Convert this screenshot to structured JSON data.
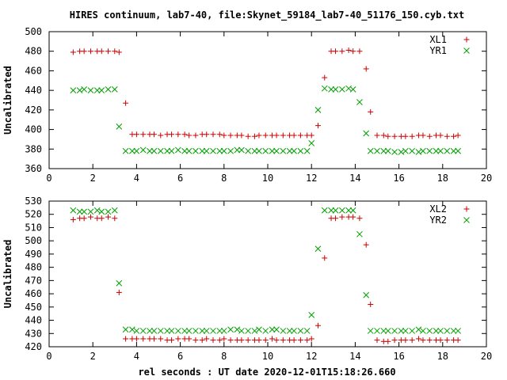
{
  "title": "HIRES continuum, lab7-40, file:Skynet_59184_lab7-40_51176_150.cyb.txt",
  "xlabel": "rel seconds : UT date 2020-12-01T15:18:26.660",
  "colors": {
    "series1": "#cc0000",
    "series2": "#00a000",
    "axis": "#000000"
  },
  "chart_data": [
    {
      "type": "scatter",
      "ylabel": "Uncalibrated",
      "xlim": [
        0,
        20
      ],
      "ylim": [
        360,
        500
      ],
      "xticks": [
        0,
        2,
        4,
        6,
        8,
        10,
        12,
        14,
        16,
        18,
        20
      ],
      "yticks": [
        360,
        380,
        400,
        420,
        440,
        460,
        480,
        500
      ],
      "grid": false,
      "legend": "top-right",
      "series": [
        {
          "name": "XL1",
          "marker": "plus",
          "x": [
            1.1,
            1.4,
            1.6,
            1.9,
            2.2,
            2.4,
            2.7,
            3.0,
            3.2,
            3.5,
            3.8,
            4.0,
            4.3,
            4.6,
            4.8,
            5.1,
            5.4,
            5.6,
            5.9,
            6.2,
            6.4,
            6.7,
            7.0,
            7.2,
            7.5,
            7.8,
            8.0,
            8.3,
            8.6,
            8.8,
            9.1,
            9.4,
            9.6,
            9.9,
            10.2,
            10.4,
            10.7,
            11.0,
            11.2,
            11.5,
            11.8,
            12.0,
            12.3,
            12.6,
            12.9,
            13.1,
            13.4,
            13.7,
            13.9,
            14.2,
            14.5,
            14.7,
            15.0,
            15.3,
            15.5,
            15.8,
            16.1,
            16.3,
            16.6,
            16.9,
            17.1,
            17.4,
            17.7,
            17.9,
            18.2,
            18.5,
            18.7
          ],
          "y": [
            479,
            480,
            480,
            480,
            480,
            480,
            480,
            480,
            479,
            427,
            395,
            395,
            395,
            395,
            395,
            394,
            395,
            395,
            395,
            395,
            394,
            394,
            395,
            395,
            395,
            395,
            394,
            394,
            394,
            394,
            393,
            393,
            394,
            394,
            394,
            394,
            394,
            394,
            394,
            394,
            394,
            394,
            404,
            453,
            480,
            480,
            480,
            481,
            480,
            480,
            462,
            418,
            394,
            394,
            393,
            393,
            393,
            393,
            393,
            394,
            394,
            393,
            394,
            394,
            393,
            393,
            394
          ]
        },
        {
          "name": "YR1",
          "marker": "cross",
          "x": [
            1.1,
            1.4,
            1.6,
            1.9,
            2.2,
            2.4,
            2.7,
            3.0,
            3.2,
            3.5,
            3.8,
            4.0,
            4.3,
            4.6,
            4.8,
            5.1,
            5.4,
            5.6,
            5.9,
            6.2,
            6.4,
            6.7,
            7.0,
            7.2,
            7.5,
            7.8,
            8.0,
            8.3,
            8.6,
            8.8,
            9.1,
            9.4,
            9.6,
            9.9,
            10.2,
            10.4,
            10.7,
            11.0,
            11.2,
            11.5,
            11.8,
            12.0,
            12.3,
            12.6,
            12.9,
            13.1,
            13.4,
            13.7,
            13.9,
            14.2,
            14.5,
            14.7,
            15.0,
            15.3,
            15.5,
            15.8,
            16.1,
            16.3,
            16.6,
            16.9,
            17.1,
            17.4,
            17.7,
            17.9,
            18.2,
            18.5,
            18.7
          ],
          "y": [
            440,
            440,
            441,
            440,
            440,
            440,
            441,
            441,
            403,
            378,
            378,
            378,
            379,
            378,
            378,
            378,
            378,
            378,
            379,
            378,
            378,
            378,
            378,
            378,
            378,
            378,
            378,
            378,
            379,
            379,
            378,
            378,
            378,
            378,
            378,
            378,
            378,
            378,
            378,
            378,
            378,
            386,
            420,
            442,
            441,
            441,
            441,
            442,
            441,
            428,
            396,
            378,
            378,
            378,
            378,
            377,
            377,
            378,
            378,
            377,
            378,
            378,
            378,
            378,
            378,
            378,
            378
          ]
        }
      ]
    },
    {
      "type": "scatter",
      "ylabel": "Uncalibrated",
      "xlabel": "rel seconds : UT date 2020-12-01T15:18:26.660",
      "xlim": [
        0,
        20
      ],
      "ylim": [
        420,
        530
      ],
      "xticks": [
        0,
        2,
        4,
        6,
        8,
        10,
        12,
        14,
        16,
        18,
        20
      ],
      "yticks": [
        420,
        430,
        440,
        450,
        460,
        470,
        480,
        490,
        500,
        510,
        520,
        530
      ],
      "grid": false,
      "legend": "top-right",
      "series": [
        {
          "name": "XL2",
          "marker": "plus",
          "x": [
            1.1,
            1.4,
            1.6,
            1.9,
            2.2,
            2.4,
            2.7,
            3.0,
            3.2,
            3.5,
            3.8,
            4.0,
            4.3,
            4.6,
            4.8,
            5.1,
            5.4,
            5.6,
            5.9,
            6.2,
            6.4,
            6.7,
            7.0,
            7.2,
            7.5,
            7.8,
            8.0,
            8.3,
            8.6,
            8.8,
            9.1,
            9.4,
            9.6,
            9.9,
            10.2,
            10.4,
            10.7,
            11.0,
            11.2,
            11.5,
            11.8,
            12.0,
            12.3,
            12.6,
            12.9,
            13.1,
            13.4,
            13.7,
            13.9,
            14.2,
            14.5,
            14.7,
            15.0,
            15.3,
            15.5,
            15.8,
            16.1,
            16.3,
            16.6,
            16.9,
            17.1,
            17.4,
            17.7,
            17.9,
            18.2,
            18.5,
            18.7
          ],
          "y": [
            516,
            517,
            517,
            518,
            517,
            517,
            518,
            517,
            461,
            426,
            426,
            426,
            426,
            426,
            426,
            426,
            425,
            425,
            426,
            426,
            426,
            425,
            425,
            426,
            425,
            425,
            426,
            425,
            425,
            425,
            425,
            425,
            425,
            425,
            426,
            425,
            425,
            425,
            425,
            425,
            425,
            426,
            436,
            487,
            517,
            517,
            518,
            518,
            518,
            517,
            497,
            452,
            425,
            424,
            424,
            425,
            425,
            425,
            425,
            426,
            425,
            425,
            425,
            425,
            425,
            425,
            425
          ]
        },
        {
          "name": "YR2",
          "marker": "cross",
          "x": [
            1.1,
            1.4,
            1.6,
            1.9,
            2.2,
            2.4,
            2.7,
            3.0,
            3.2,
            3.5,
            3.8,
            4.0,
            4.3,
            4.6,
            4.8,
            5.1,
            5.4,
            5.6,
            5.9,
            6.2,
            6.4,
            6.7,
            7.0,
            7.2,
            7.5,
            7.8,
            8.0,
            8.3,
            8.6,
            8.8,
            9.1,
            9.4,
            9.6,
            9.9,
            10.2,
            10.4,
            10.7,
            11.0,
            11.2,
            11.5,
            11.8,
            12.0,
            12.3,
            12.6,
            12.9,
            13.1,
            13.4,
            13.7,
            13.9,
            14.2,
            14.5,
            14.7,
            15.0,
            15.3,
            15.5,
            15.8,
            16.1,
            16.3,
            16.6,
            16.9,
            17.1,
            17.4,
            17.7,
            17.9,
            18.2,
            18.5,
            18.7
          ],
          "y": [
            523,
            522,
            522,
            522,
            523,
            522,
            522,
            523,
            468,
            433,
            433,
            432,
            432,
            432,
            432,
            432,
            432,
            432,
            432,
            432,
            432,
            432,
            432,
            432,
            432,
            432,
            432,
            433,
            433,
            432,
            432,
            432,
            433,
            432,
            433,
            433,
            432,
            432,
            432,
            432,
            432,
            444,
            494,
            523,
            523,
            523,
            523,
            523,
            523,
            505,
            459,
            432,
            432,
            432,
            432,
            432,
            432,
            432,
            432,
            433,
            432,
            432,
            432,
            432,
            432,
            432,
            432
          ]
        }
      ]
    }
  ]
}
